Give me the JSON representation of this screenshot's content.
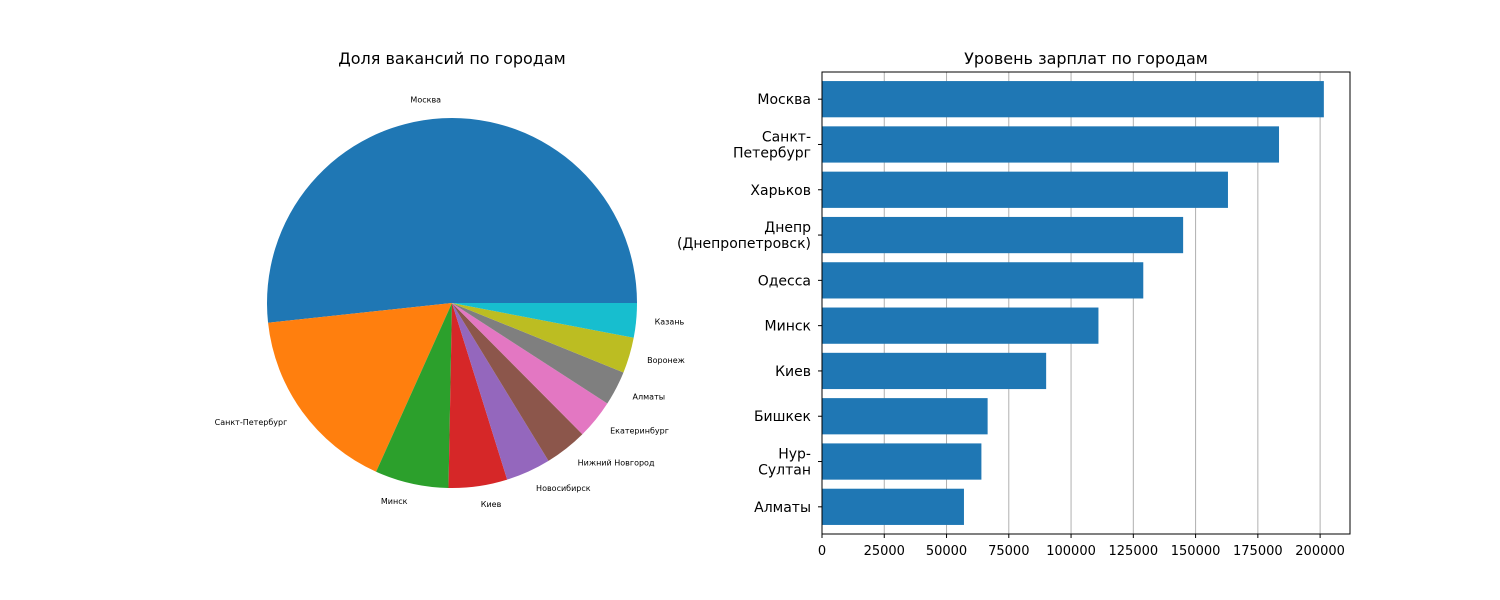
{
  "chart_data": [
    {
      "type": "pie",
      "title": "Доля вакансий по городам",
      "categories": [
        "Москва",
        "Санкт-Петербург",
        "Минск",
        "Киев",
        "Новосибирск",
        "Нижний Новгород",
        "Екатеринбург",
        "Алматы",
        "Воронеж",
        "Казань"
      ],
      "values": [
        51.5,
        16.5,
        6.4,
        5.1,
        3.9,
        3.7,
        3.4,
        3.0,
        3.1,
        3.0
      ],
      "colors": [
        "#1f77b4",
        "#ff7f0e",
        "#2ca02c",
        "#d62728",
        "#9467bd",
        "#8c564b",
        "#e377c2",
        "#7f7f7f",
        "#bcbd22",
        "#17becf"
      ],
      "start_angle": 0,
      "direction": "counterclockwise"
    },
    {
      "type": "bar",
      "orientation": "horizontal",
      "title": "Уровень зарплат по городам",
      "categories": [
        "Москва",
        "Санкт-\nПетербург",
        "Харьков",
        "Днепр\n(Днепропетровск)",
        "Одесса",
        "Минск",
        "Киев",
        "Бишкек",
        "Нур-\nСултан",
        "Алматы"
      ],
      "values": [
        201500,
        183500,
        163000,
        145000,
        129000,
        111000,
        90000,
        66500,
        64000,
        57000
      ],
      "xlim": [
        0,
        212000
      ],
      "xticks": [
        0,
        25000,
        50000,
        75000,
        100000,
        125000,
        150000,
        175000,
        200000
      ],
      "grid": "x",
      "color": "#1f77b4"
    }
  ]
}
